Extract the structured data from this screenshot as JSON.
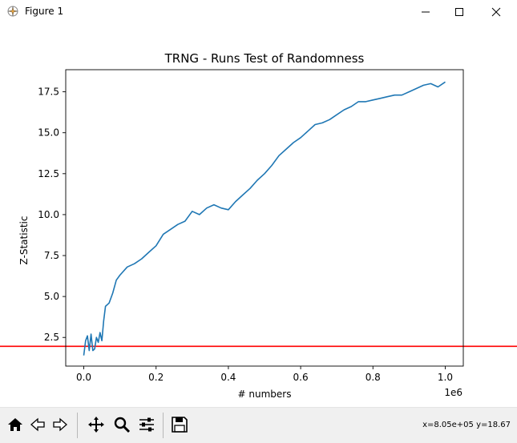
{
  "window": {
    "title": "Figure 1"
  },
  "toolbar": {
    "buttons": [
      "home-icon",
      "back-icon",
      "forward-icon",
      "pan-icon",
      "zoom-icon",
      "configure-subplots-icon",
      "save-icon"
    ],
    "coords": "x=8.05e+05 y=18.67"
  },
  "chart_data": {
    "type": "line",
    "title": "TRNG - Runs Test of Randomness",
    "xlabel": "# numbers",
    "ylabel": "Z-Statistic",
    "x_offset_label": "1e6",
    "xlim": [
      -0.05,
      1.05
    ],
    "ylim": [
      0.75,
      18.85
    ],
    "xticks": [
      0.0,
      0.2,
      0.4,
      0.6,
      0.8,
      1.0
    ],
    "xtick_labels": [
      "0.0",
      "0.2",
      "0.4",
      "0.6",
      "0.8",
      "1.0"
    ],
    "yticks": [
      2.5,
      5.0,
      7.5,
      10.0,
      12.5,
      15.0,
      17.5
    ],
    "ytick_labels": [
      "2.5",
      "5.0",
      "7.5",
      "10.0",
      "12.5",
      "15.0",
      "17.5"
    ],
    "line_color": "#1f77b4",
    "threshold": {
      "y": 1.96,
      "color": "#ff0000"
    },
    "series": [
      {
        "x": [
          0.0,
          0.005,
          0.01,
          0.015,
          0.02,
          0.025,
          0.03,
          0.035,
          0.04,
          0.045,
          0.05,
          0.055,
          0.06,
          0.07,
          0.08,
          0.09,
          0.1,
          0.12,
          0.14,
          0.16,
          0.18,
          0.2,
          0.22,
          0.24,
          0.26,
          0.28,
          0.3,
          0.32,
          0.34,
          0.36,
          0.38,
          0.4,
          0.42,
          0.44,
          0.46,
          0.48,
          0.5,
          0.52,
          0.54,
          0.56,
          0.58,
          0.6,
          0.62,
          0.64,
          0.66,
          0.68,
          0.7,
          0.72,
          0.74,
          0.76,
          0.78,
          0.8,
          0.82,
          0.84,
          0.86,
          0.88,
          0.9,
          0.92,
          0.94,
          0.96,
          0.98,
          1.0
        ],
        "y": [
          1.4,
          2.3,
          2.6,
          1.7,
          2.7,
          1.7,
          1.8,
          2.5,
          2.2,
          2.8,
          2.3,
          3.5,
          4.4,
          4.6,
          5.2,
          6.0,
          6.3,
          6.8,
          7.0,
          7.3,
          7.7,
          8.1,
          8.8,
          9.1,
          9.4,
          9.6,
          10.2,
          10.0,
          10.4,
          10.6,
          10.4,
          10.3,
          10.8,
          11.2,
          11.6,
          12.1,
          12.5,
          13.0,
          13.6,
          14.0,
          14.4,
          14.7,
          15.1,
          15.5,
          15.6,
          15.8,
          16.1,
          16.4,
          16.6,
          16.9,
          16.9,
          17.0,
          17.1,
          17.2,
          17.3,
          17.3,
          17.5,
          17.7,
          17.9,
          18.0,
          17.8,
          18.1
        ]
      }
    ]
  }
}
